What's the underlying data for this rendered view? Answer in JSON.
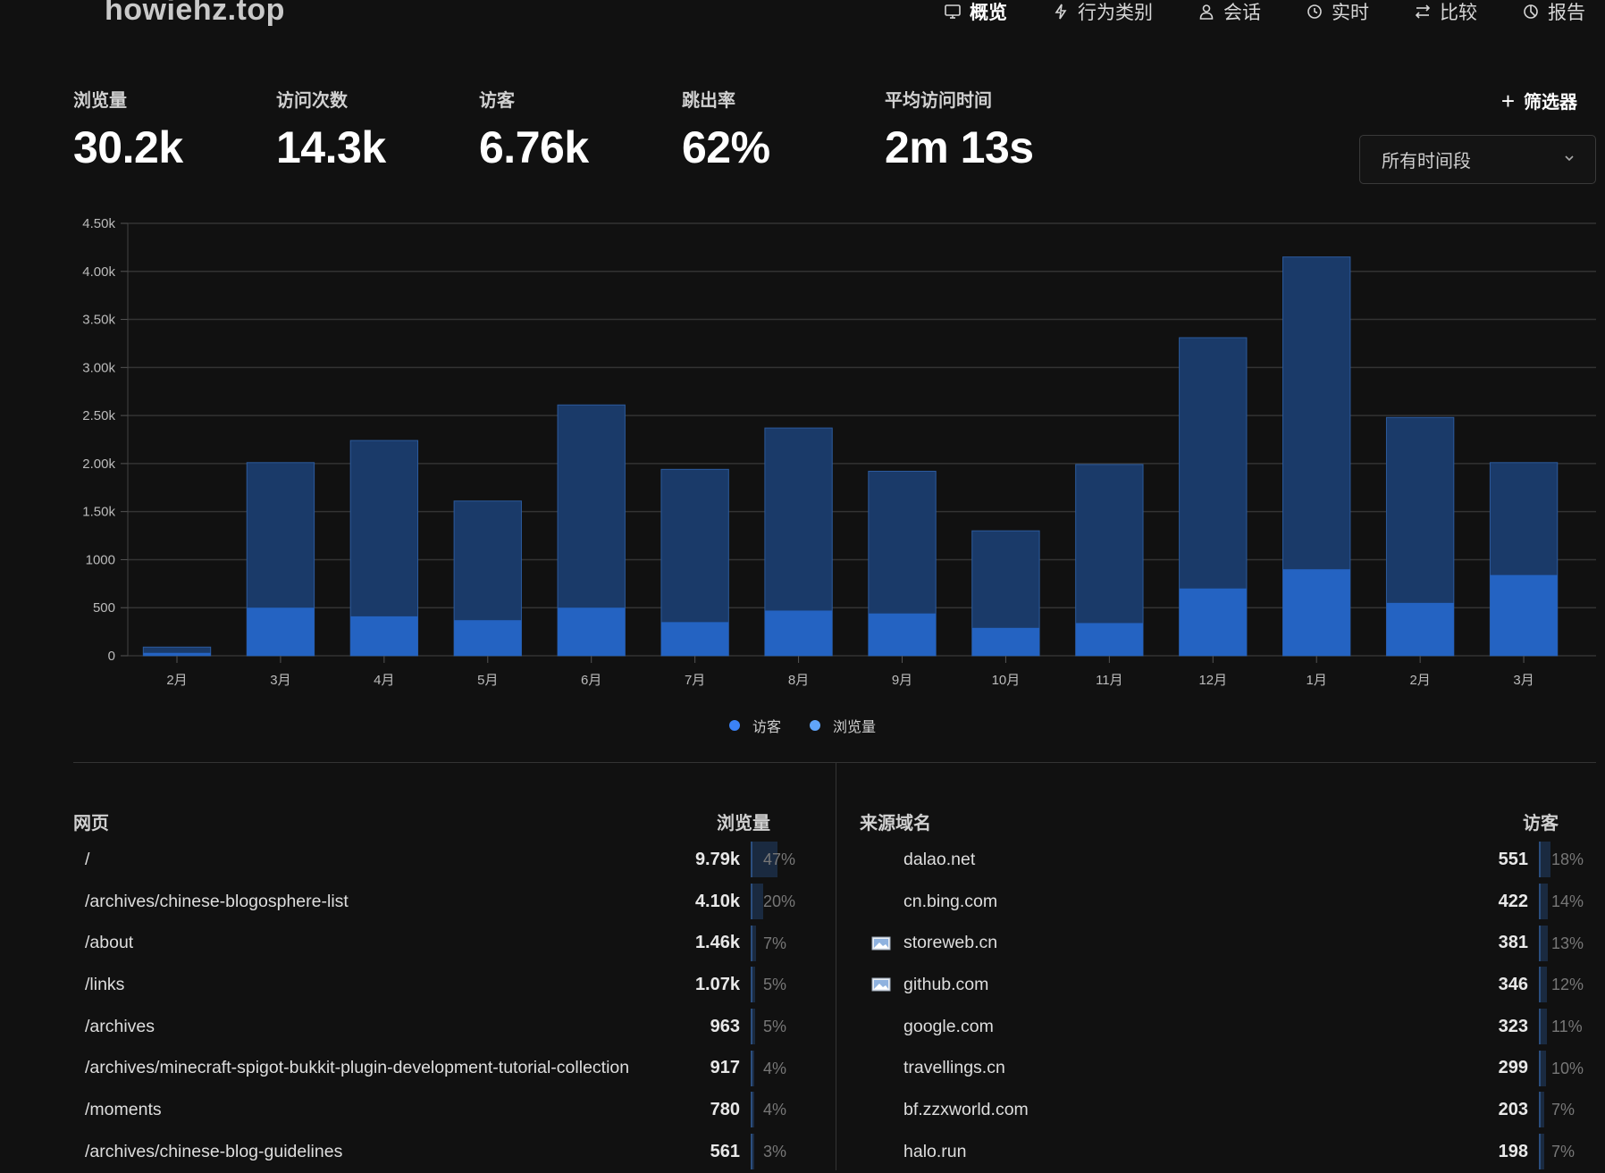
{
  "site": {
    "title": "howiehz.top"
  },
  "nav": [
    {
      "label": "概览",
      "icon": "monitor-icon",
      "active": true
    },
    {
      "label": "行为类别",
      "icon": "lightning-icon",
      "active": false
    },
    {
      "label": "会话",
      "icon": "user-icon",
      "active": false
    },
    {
      "label": "实时",
      "icon": "clock-icon",
      "active": false
    },
    {
      "label": "比较",
      "icon": "swap-icon",
      "active": false
    },
    {
      "label": "报告",
      "icon": "pie-icon",
      "active": false
    }
  ],
  "metrics": [
    {
      "label": "浏览量",
      "value": "30.2k"
    },
    {
      "label": "访问次数",
      "value": "14.3k"
    },
    {
      "label": "访客",
      "value": "6.76k"
    },
    {
      "label": "跳出率",
      "value": "62%"
    },
    {
      "label": "平均访问时间",
      "value": "2m 13s"
    }
  ],
  "filter": {
    "label": "筛选器"
  },
  "date_range": {
    "value": "所有时间段"
  },
  "colors": {
    "views": "#1a3a69",
    "views_stroke": "#2c5a9c",
    "visitors": "#2463c2",
    "legend_visitors": "#3b82f6",
    "legend_views": "#60a5fa"
  },
  "chart_data": {
    "type": "bar",
    "categories": [
      "2月",
      "3月",
      "4月",
      "5月",
      "6月",
      "7月",
      "8月",
      "9月",
      "10月",
      "11月",
      "12月",
      "1月",
      "2月",
      "3月"
    ],
    "series": [
      {
        "name": "访客",
        "values": [
          30,
          500,
          410,
          370,
          500,
          350,
          470,
          440,
          290,
          340,
          700,
          900,
          550,
          840
        ]
      },
      {
        "name": "浏览量",
        "values": [
          90,
          2010,
          2240,
          1610,
          2610,
          1940,
          2370,
          1920,
          1300,
          1990,
          3310,
          4150,
          2480,
          2010
        ]
      }
    ],
    "stacked_overlap": true,
    "ylim": [
      0,
      4500
    ],
    "yticks": [
      0,
      500,
      1000,
      1500,
      2000,
      2500,
      3000,
      3500,
      4000,
      4500
    ],
    "ytick_labels": [
      "0",
      "500",
      "1000",
      "1.50k",
      "2.00k",
      "2.50k",
      "3.00k",
      "3.50k",
      "4.00k",
      "4.50k"
    ],
    "grid": true,
    "legend_position": "bottom-center"
  },
  "legend": [
    {
      "label": "访客"
    },
    {
      "label": "浏览量"
    }
  ],
  "pages_table": {
    "title": "网页",
    "metric": "浏览量",
    "rows": [
      {
        "label": "/",
        "value": "9.79k",
        "pct": "47%",
        "share": 0.47
      },
      {
        "label": "/archives/chinese-blogosphere-list",
        "value": "4.10k",
        "pct": "20%",
        "share": 0.2
      },
      {
        "label": "/about",
        "value": "1.46k",
        "pct": "7%",
        "share": 0.07
      },
      {
        "label": "/links",
        "value": "1.07k",
        "pct": "5%",
        "share": 0.05
      },
      {
        "label": "/archives",
        "value": "963",
        "pct": "5%",
        "share": 0.05
      },
      {
        "label": "/archives/minecraft-spigot-bukkit-plugin-development-tutorial-collection",
        "value": "917",
        "pct": "4%",
        "share": 0.04
      },
      {
        "label": "/moments",
        "value": "780",
        "pct": "4%",
        "share": 0.04
      },
      {
        "label": "/archives/chinese-blog-guidelines",
        "value": "561",
        "pct": "3%",
        "share": 0.03
      }
    ]
  },
  "referrers_table": {
    "title": "来源域名",
    "metric": "访客",
    "rows": [
      {
        "label": "dalao.net",
        "value": "551",
        "pct": "18%",
        "share": 0.18,
        "favicon": false
      },
      {
        "label": "cn.bing.com",
        "value": "422",
        "pct": "14%",
        "share": 0.14,
        "favicon": false
      },
      {
        "label": "storeweb.cn",
        "value": "381",
        "pct": "13%",
        "share": 0.13,
        "favicon": true
      },
      {
        "label": "github.com",
        "value": "346",
        "pct": "12%",
        "share": 0.12,
        "favicon": true
      },
      {
        "label": "google.com",
        "value": "323",
        "pct": "11%",
        "share": 0.11,
        "favicon": false
      },
      {
        "label": "travellings.cn",
        "value": "299",
        "pct": "10%",
        "share": 0.1,
        "favicon": false
      },
      {
        "label": "bf.zzxworld.com",
        "value": "203",
        "pct": "7%",
        "share": 0.07,
        "favicon": false
      },
      {
        "label": "halo.run",
        "value": "198",
        "pct": "7%",
        "share": 0.07,
        "favicon": false
      }
    ]
  }
}
